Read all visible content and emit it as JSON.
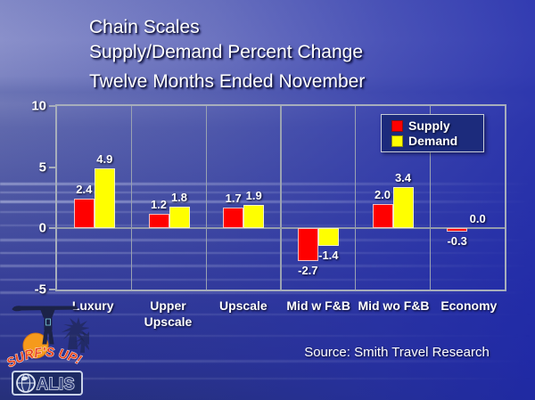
{
  "slide": {
    "title_lines": [
      "Chain Scales",
      "Supply/Demand Percent Change",
      "Twelve Months Ended November"
    ],
    "source": "Source: Smith Travel Research",
    "logo": {
      "tagline": "SURF'S UP!",
      "brand": "ALIS"
    }
  },
  "chart_data": {
    "type": "bar",
    "title": "Chain Scales Supply/Demand Percent Change, Twelve Months Ended November",
    "categories": [
      "Luxury",
      "Upper Upscale",
      "Upscale",
      "Mid w F&B",
      "Mid wo F&B",
      "Economy"
    ],
    "series": [
      {
        "name": "Supply",
        "color": "#ff0000",
        "values": [
          2.4,
          1.2,
          1.7,
          -2.7,
          2.0,
          -0.3
        ]
      },
      {
        "name": "Demand",
        "color": "#ffff00",
        "values": [
          4.9,
          1.8,
          1.9,
          -1.4,
          3.4,
          0.0
        ]
      }
    ],
    "xlabel": "",
    "ylabel": "",
    "ylim": [
      -5,
      10
    ],
    "yticks": [
      10,
      5,
      0,
      -5
    ],
    "grid": "vertical-category-separators",
    "legend_position": "top-right-inside",
    "value_labels": "one-decimal",
    "axis_color": "#a7aebc",
    "source": "Smith Travel Research"
  }
}
